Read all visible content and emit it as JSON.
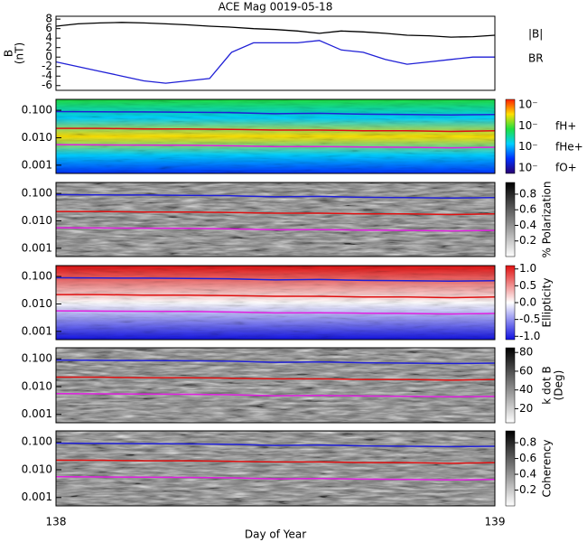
{
  "title": "ACE Mag 0019-05-18",
  "xlabel": "Day of Year",
  "xlim": [
    138,
    139
  ],
  "xticks": [
    138,
    139
  ],
  "chart_data": [
    {
      "type": "line",
      "ylabel": [
        "B",
        "(nT)"
      ],
      "ylim": [
        -7,
        8.6
      ],
      "yticks": [
        -6,
        -4,
        -2,
        0,
        2,
        4,
        6,
        8
      ],
      "x": [
        138,
        138.05,
        138.1,
        138.15,
        138.2,
        138.25,
        138.3,
        138.35,
        138.4,
        138.45,
        138.5,
        138.55,
        138.6,
        138.65,
        138.7,
        138.75,
        138.8,
        138.85,
        138.9,
        138.95,
        139
      ],
      "series": [
        {
          "name": "|B|",
          "color": "#000000",
          "values": [
            6.5,
            7,
            7.2,
            7.3,
            7.2,
            7,
            6.8,
            6.5,
            6.3,
            6,
            5.8,
            5.5,
            5,
            5.5,
            5.3,
            5,
            4.6,
            4.5,
            4.2,
            4.3,
            4.6
          ]
        },
        {
          "name": "BR",
          "color": "#1f1fd6",
          "values": [
            -1,
            -2,
            -3,
            -4,
            -5,
            -5.5,
            -5,
            -4.5,
            1,
            3,
            3,
            3,
            3.5,
            1.5,
            1,
            -0.5,
            -1.5,
            -1,
            -0.5,
            0,
            0
          ]
        }
      ]
    },
    {
      "type": "spectrogram",
      "log_y": true,
      "ylim": [
        0.0005,
        0.25
      ],
      "yticks": [
        {
          "value": 0.1,
          "label": "0.100"
        },
        {
          "value": 0.01,
          "label": "0.010"
        },
        {
          "value": 0.001,
          "label": "0.001"
        }
      ],
      "colormap": [
        "#2a0070",
        "#0030ff",
        "#00d0ff",
        "#20e040",
        "#ffe000",
        "#ff2000"
      ],
      "cbar_labels": [
        "10⁻",
        "10⁻",
        "10⁻",
        "10⁻"
      ],
      "x": [
        138,
        138.1,
        138.2,
        138.3,
        138.4,
        138.5,
        138.6,
        138.7,
        138.8,
        138.9,
        139
      ],
      "series": [
        {
          "name": "fH+",
          "color": "#1f1fd6",
          "values": [
            0.09,
            0.088,
            0.087,
            0.085,
            0.082,
            0.075,
            0.078,
            0.072,
            0.07,
            0.068,
            0.07
          ]
        },
        {
          "name": "fHe+",
          "color": "#e01010",
          "values": [
            0.022,
            0.022,
            0.021,
            0.021,
            0.02,
            0.019,
            0.019,
            0.018,
            0.018,
            0.017,
            0.018
          ]
        },
        {
          "name": "fO+",
          "color": "#e020e0",
          "values": [
            0.0056,
            0.0055,
            0.0054,
            0.0053,
            0.0051,
            0.0047,
            0.0048,
            0.0046,
            0.0045,
            0.0043,
            0.0045
          ]
        }
      ]
    },
    {
      "type": "spectrogram",
      "log_y": true,
      "ylim": [
        0.0005,
        0.25
      ],
      "yticks": [
        {
          "value": 0.1,
          "label": "0.100"
        },
        {
          "value": 0.01,
          "label": "0.010"
        },
        {
          "value": 0.001,
          "label": "0.001"
        }
      ],
      "colormap": [
        "#ffffff",
        "#000000"
      ],
      "cbar_title": [
        "% Polarization"
      ],
      "cbar_lim": [
        0,
        0.95
      ],
      "cbar_ticks": [
        0.2,
        0.4,
        0.6,
        0.8
      ]
    },
    {
      "type": "spectrogram",
      "log_y": true,
      "ylim": [
        0.0005,
        0.25
      ],
      "yticks": [
        {
          "value": 0.1,
          "label": "0.100"
        },
        {
          "value": 0.01,
          "label": "0.010"
        },
        {
          "value": 0.001,
          "label": "0.001"
        }
      ],
      "colormap": [
        "#1010e0",
        "#ffffff",
        "#e01010"
      ],
      "cbar_title": [
        "Ellipticity"
      ],
      "cbar_lim": [
        -1.1,
        1.1
      ],
      "cbar_ticks": [
        {
          "value": -1,
          "label": "-1.0"
        },
        {
          "value": -0.5,
          "label": "-0.5"
        },
        {
          "value": 0,
          "label": "0.0"
        },
        {
          "value": 0.5,
          "label": "0.5"
        },
        {
          "value": 1,
          "label": "1.0"
        }
      ]
    },
    {
      "type": "spectrogram",
      "log_y": true,
      "ylim": [
        0.0005,
        0.25
      ],
      "yticks": [
        {
          "value": 0.1,
          "label": "0.100"
        },
        {
          "value": 0.01,
          "label": "0.010"
        },
        {
          "value": 0.001,
          "label": "0.001"
        }
      ],
      "colormap": [
        "#ffffff",
        "#000000"
      ],
      "cbar_title": [
        "k dot B",
        "(Deg)"
      ],
      "cbar_lim": [
        5,
        85
      ],
      "cbar_ticks": [
        20,
        40,
        60,
        80
      ]
    },
    {
      "type": "spectrogram",
      "log_y": true,
      "ylim": [
        0.0005,
        0.25
      ],
      "yticks": [
        {
          "value": 0.1,
          "label": "0.100"
        },
        {
          "value": 0.01,
          "label": "0.010"
        },
        {
          "value": 0.001,
          "label": "0.001"
        }
      ],
      "colormap": [
        "#ffffff",
        "#000000"
      ],
      "cbar_title": [
        "Coherency"
      ],
      "cbar_lim": [
        0,
        0.95
      ],
      "cbar_ticks": [
        0.2,
        0.4,
        0.6,
        0.8
      ]
    }
  ]
}
